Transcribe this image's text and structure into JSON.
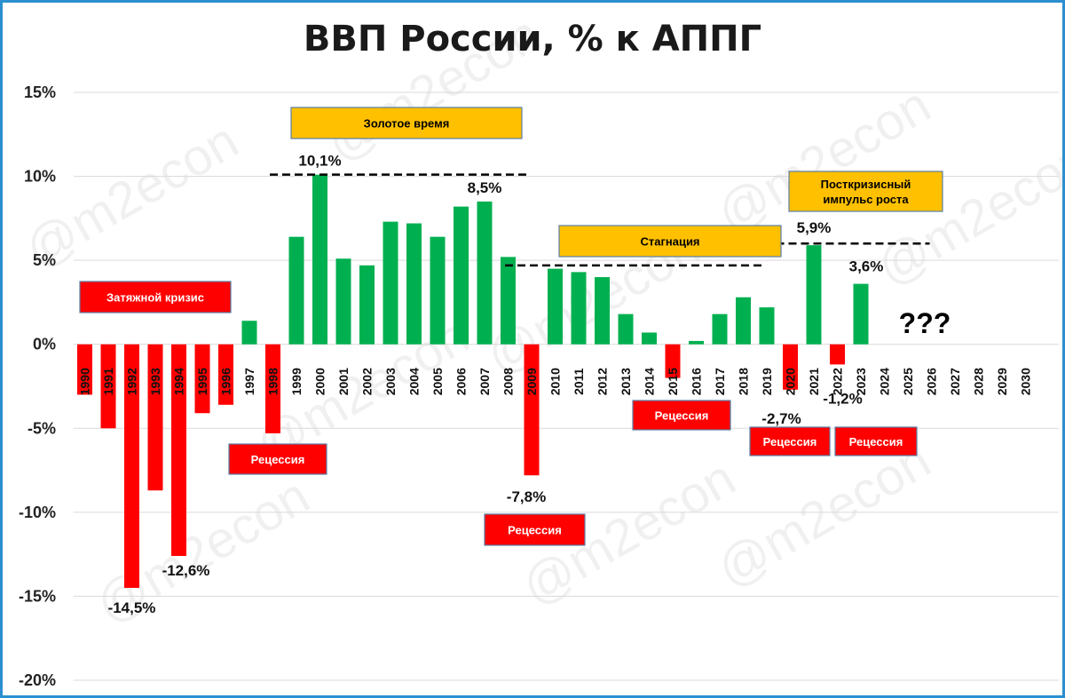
{
  "chart_data": {
    "type": "bar",
    "title": "ВВП России, % к АППГ",
    "ylim": [
      -20,
      15
    ],
    "yticks": [
      15,
      10,
      5,
      0,
      -5,
      -10,
      -15,
      -20
    ],
    "ytick_labels": [
      "15%",
      "10%",
      "5%",
      "0%",
      "-5%",
      "-10%",
      "-15%",
      "-20%"
    ],
    "grid": true,
    "categories": [
      "1990",
      "1991",
      "1992",
      "1993",
      "1994",
      "1995",
      "1996",
      "1997",
      "1998",
      "1999",
      "2000",
      "2001",
      "2002",
      "2003",
      "2004",
      "2005",
      "2006",
      "2007",
      "2008",
      "2009",
      "2010",
      "2011",
      "2012",
      "2013",
      "2014",
      "2015",
      "2016",
      "2017",
      "2018",
      "2019",
      "2020",
      "2021",
      "2022",
      "2023",
      "2024",
      "2025",
      "2026",
      "2027",
      "2028",
      "2029",
      "2030"
    ],
    "values": [
      -3.0,
      -5.0,
      -14.5,
      -8.7,
      -12.6,
      -4.1,
      -3.6,
      1.4,
      -5.3,
      6.4,
      10.1,
      5.1,
      4.7,
      7.3,
      7.2,
      6.4,
      8.2,
      8.5,
      5.2,
      -7.8,
      4.5,
      4.3,
      4.0,
      1.8,
      0.7,
      -2.0,
      0.2,
      1.8,
      2.8,
      2.2,
      -2.7,
      5.9,
      -1.2,
      3.6,
      null,
      null,
      null,
      null,
      null,
      null,
      null
    ],
    "colors": {
      "positive": "#00b050",
      "negative": "#ff0000"
    },
    "data_labels": [
      {
        "category": "1992",
        "text": "-14,5%"
      },
      {
        "category": "1994",
        "text": "-12,6%"
      },
      {
        "category": "2000",
        "text": "10,1%"
      },
      {
        "category": "2007",
        "text": "8,5%"
      },
      {
        "category": "2009",
        "text": "-7,8%"
      },
      {
        "category": "2020",
        "text": "-2,7%"
      },
      {
        "category": "2021",
        "text": "5,9%"
      },
      {
        "category": "2022",
        "text": "-1,2%"
      },
      {
        "category": "2023",
        "text": "3,6%"
      }
    ],
    "dashed_lines": [
      {
        "value": 10.1,
        "from": "1999",
        "to": "2009"
      },
      {
        "value": 4.7,
        "from": "2009",
        "to": "2019"
      },
      {
        "value": 6.0,
        "from": "2020",
        "to": "2026"
      }
    ],
    "annotations": [
      {
        "text": "Затяжной кризис",
        "style": "red",
        "near": "1991-1996"
      },
      {
        "text": "Рецессия",
        "style": "red",
        "near": "1998"
      },
      {
        "text": "Золотое время",
        "style": "orange",
        "near": "1999-2008"
      },
      {
        "text": "Рецессия",
        "style": "red",
        "near": "2009"
      },
      {
        "text": "Стагнация",
        "style": "orange",
        "near": "2010-2019"
      },
      {
        "text": "Рецессия",
        "style": "red",
        "near": "2015"
      },
      {
        "text": "Посткризисный импульс роста",
        "lines": [
          "Посткризисный",
          "импульс роста"
        ],
        "style": "orange",
        "near": "2021-2023"
      },
      {
        "text": "Рецессия",
        "style": "red",
        "near": "2020"
      },
      {
        "text": "Рецессия",
        "style": "red",
        "near": "2022"
      },
      {
        "text": "???",
        "style": "plain",
        "near": "2024-2025"
      }
    ],
    "box_colors": {
      "red": "#ff0000",
      "orange": "#ffc000",
      "red_text": "#ffffff",
      "orange_text": "#000000"
    },
    "watermark": "@m2econ"
  }
}
